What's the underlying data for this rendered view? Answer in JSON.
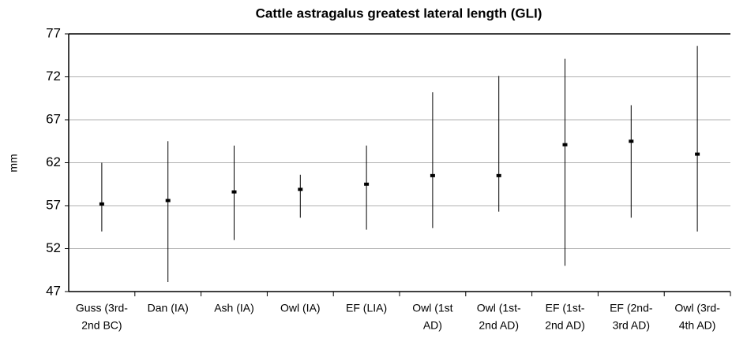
{
  "chart_data": {
    "type": "range",
    "title": "Cattle astragalus greatest lateral length (GLI)",
    "y_label": "mm",
    "categories": [
      [
        "Guss (3rd-",
        "2nd BC)"
      ],
      [
        "Dan (IA)"
      ],
      [
        "Ash (IA)"
      ],
      [
        "Owl (IA)"
      ],
      [
        "EF (LIA)"
      ],
      [
        "Owl (1st",
        "AD)"
      ],
      [
        "Owl (1st-",
        "2nd AD)"
      ],
      [
        "EF (1st-",
        "2nd AD)"
      ],
      [
        "EF (2nd-",
        "3rd AD)"
      ],
      [
        "Owl (3rd-",
        "4th AD)"
      ]
    ],
    "values": [
      57.2,
      57.6,
      58.6,
      58.9,
      59.5,
      60.5,
      60.5,
      64.1,
      64.5,
      63.0
    ],
    "min": [
      54.0,
      48.1,
      53.0,
      55.6,
      54.2,
      54.4,
      56.3,
      50.0,
      55.6,
      54.0
    ],
    "max": [
      62.0,
      64.5,
      64.0,
      60.6,
      64.0,
      70.2,
      72.1,
      74.1,
      68.7,
      75.6
    ],
    "color": "#000000",
    "ylim": [
      47,
      77
    ],
    "yticks": [
      47,
      52,
      57,
      62,
      67,
      72,
      77
    ],
    "grid": true
  }
}
